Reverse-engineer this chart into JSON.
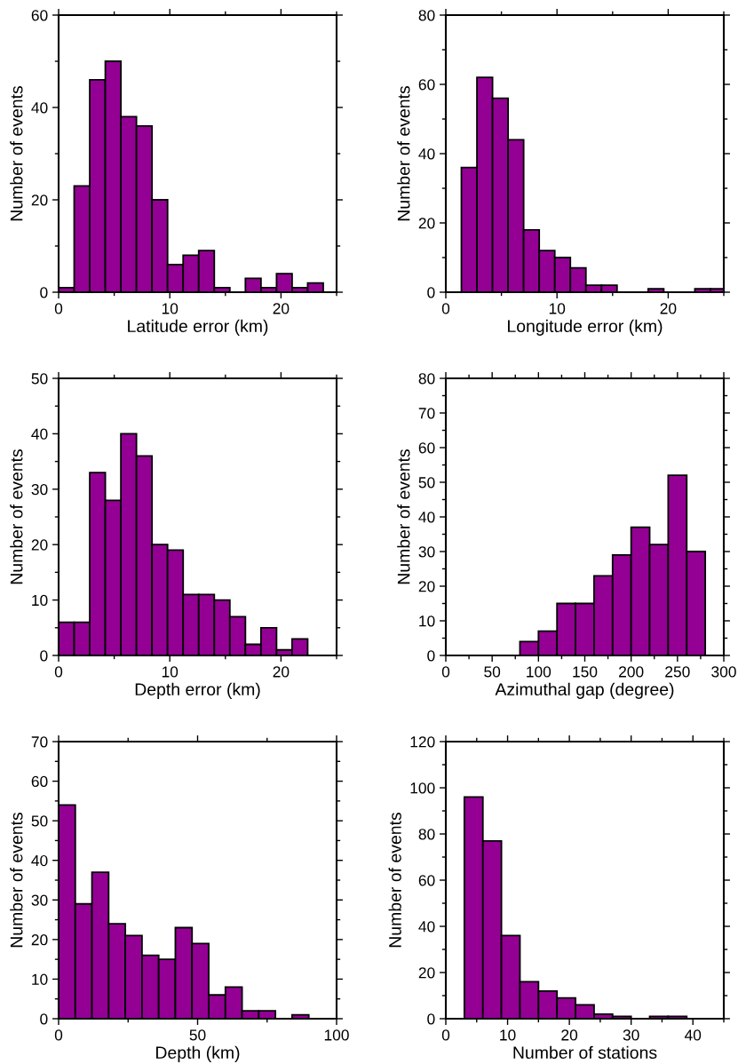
{
  "chart_data": [
    {
      "type": "histogram",
      "xlabel": "Latitude error (km)",
      "ylabel": "Number of events",
      "color": "#940094",
      "bins": [
        0,
        1.4,
        2.8,
        4.2,
        5.6,
        7.0,
        8.4,
        9.8,
        11.2,
        12.6,
        14.0,
        15.4,
        16.8,
        18.2,
        19.6,
        21.0,
        22.4,
        23.8
      ],
      "values": [
        1,
        23,
        46,
        50,
        38,
        36,
        20,
        6,
        8,
        9,
        1,
        0,
        3,
        1,
        4,
        1,
        2
      ],
      "xlim": [
        0,
        25
      ],
      "xticks": [
        0,
        10,
        20
      ],
      "ylim": [
        0,
        60
      ],
      "yticks": [
        0,
        20,
        40,
        60
      ]
    },
    {
      "type": "histogram",
      "xlabel": "Longitude error (km)",
      "ylabel": "Number of events",
      "color": "#940094",
      "bins": [
        1.4,
        2.8,
        4.2,
        5.6,
        7.0,
        8.4,
        9.8,
        11.2,
        12.6,
        14.0,
        15.4,
        18.2,
        19.6,
        22.4,
        23.8,
        25
      ],
      "values": [
        36,
        62,
        56,
        44,
        18,
        12,
        10,
        7,
        2,
        2,
        0,
        1,
        0,
        1,
        1
      ],
      "xlim": [
        0,
        25
      ],
      "xticks": [
        0,
        10,
        20
      ],
      "ylim": [
        0,
        80
      ],
      "yticks": [
        0,
        20,
        40,
        60,
        80
      ]
    },
    {
      "type": "histogram",
      "xlabel": "Depth error (km)",
      "ylabel": "Number of events",
      "color": "#940094",
      "bins": [
        0,
        1.4,
        2.8,
        4.2,
        5.6,
        7.0,
        8.4,
        9.8,
        11.2,
        12.6,
        14.0,
        15.4,
        16.8,
        18.2,
        19.6,
        21.0,
        22.4
      ],
      "values": [
        6,
        6,
        33,
        28,
        40,
        36,
        20,
        19,
        11,
        11,
        10,
        7,
        2,
        5,
        1,
        3
      ],
      "xlim": [
        0,
        25
      ],
      "xticks": [
        0,
        10,
        20
      ],
      "ylim": [
        0,
        50
      ],
      "yticks": [
        0,
        10,
        20,
        30,
        40,
        50
      ]
    },
    {
      "type": "histogram",
      "xlabel": "Azimuthal gap (degree)",
      "ylabel": "Number of events",
      "color": "#940094",
      "bins": [
        80,
        100,
        120,
        140,
        160,
        180,
        200,
        220,
        240,
        260,
        280
      ],
      "values": [
        4,
        7,
        15,
        15,
        23,
        29,
        37,
        32,
        52,
        30
      ],
      "xlim": [
        0,
        300
      ],
      "xticks": [
        0,
        50,
        100,
        150,
        200,
        250,
        300
      ],
      "ylim": [
        0,
        80
      ],
      "yticks": [
        0,
        10,
        20,
        30,
        40,
        50,
        60,
        70,
        80
      ]
    },
    {
      "type": "histogram",
      "xlabel": "Depth (km)",
      "ylabel": "Number of events",
      "color": "#940094",
      "bins": [
        0,
        6,
        12,
        18,
        24,
        30,
        36,
        42,
        48,
        54,
        60,
        66,
        72,
        78,
        84,
        90
      ],
      "values": [
        54,
        29,
        37,
        24,
        21,
        16,
        15,
        23,
        19,
        6,
        8,
        2,
        2,
        0,
        1
      ],
      "xlim": [
        0,
        100
      ],
      "xticks": [
        0,
        50,
        100
      ],
      "ylim": [
        0,
        70
      ],
      "yticks": [
        0,
        10,
        20,
        30,
        40,
        50,
        60,
        70
      ]
    },
    {
      "type": "histogram",
      "xlabel": "Number of stations",
      "ylabel": "Number of events",
      "color": "#940094",
      "bins": [
        3,
        6,
        9,
        12,
        15,
        18,
        21,
        24,
        27,
        30,
        33,
        36,
        39
      ],
      "values": [
        96,
        77,
        36,
        16,
        12,
        9,
        6,
        2,
        1,
        0,
        1,
        1
      ],
      "xlim": [
        0,
        45
      ],
      "xticks": [
        0,
        10,
        20,
        30,
        40
      ],
      "ylim": [
        0,
        120
      ],
      "yticks": [
        0,
        20,
        40,
        60,
        80,
        100,
        120
      ]
    }
  ]
}
